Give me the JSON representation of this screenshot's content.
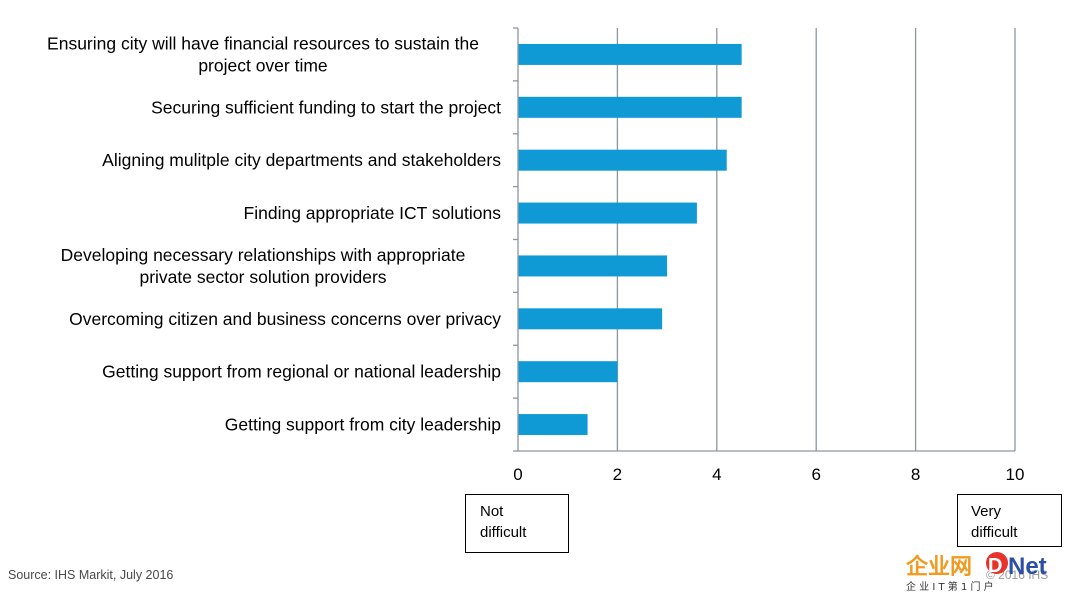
{
  "chart_data": {
    "type": "bar",
    "orientation": "horizontal",
    "categories": [
      [
        "Ensuring city will have financial resources to sustain the",
        "project over time"
      ],
      [
        "Securing sufficient funding to start the project"
      ],
      [
        "Aligning mulitple city departments and stakeholders"
      ],
      [
        "Finding appropriate ICT solutions"
      ],
      [
        "Developing necessary relationships with appropriate",
        "private sector solution providers"
      ],
      [
        "Overcoming citizen and business concerns over privacy"
      ],
      [
        "Getting support from regional or national leadership"
      ],
      [
        "Getting support from city leadership"
      ]
    ],
    "values": [
      4.5,
      4.5,
      4.2,
      3.6,
      3.0,
      2.9,
      2.0,
      1.4
    ],
    "xlim": [
      0,
      10
    ],
    "xticks": [
      "0",
      "2",
      "4",
      "6",
      "8",
      "10"
    ],
    "grid": true,
    "bar_color": "#0f9ad6"
  },
  "scale_labels": {
    "low": [
      "Not",
      "difficult"
    ],
    "high": [
      "Very",
      "difficult"
    ]
  },
  "source": "Source: IHS Markit, July 2016",
  "copyright": "© 2016 IHS",
  "watermark": {
    "text_left": "企业网",
    "text_d": "D",
    "text_net": "Net",
    "tagline": "企 业 I T 第 1 门 户"
  }
}
